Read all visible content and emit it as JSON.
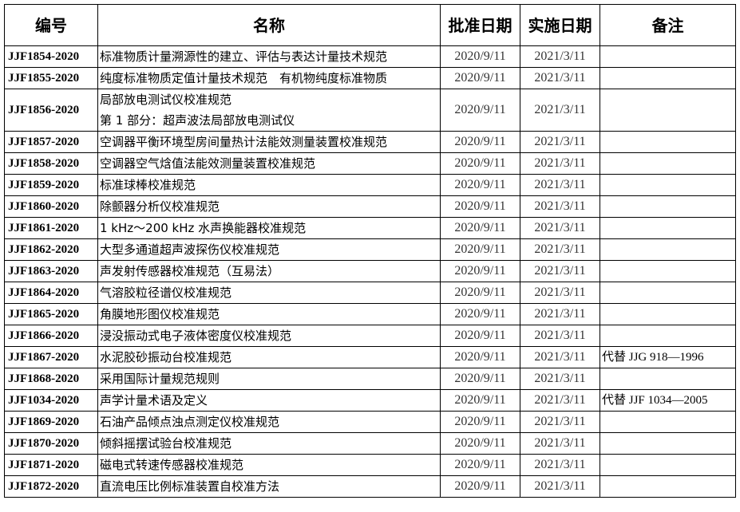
{
  "headers": [
    "编号",
    "名称",
    "批准日期",
    "实施日期",
    "备注"
  ],
  "rows": [
    {
      "code": "JJF1854-2020",
      "name": "标准物质计量溯源性的建立、评估与表达计量技术规范",
      "approved": "2020/9/11",
      "effective": "2021/3/11",
      "note": ""
    },
    {
      "code": "JJF1855-2020",
      "name": "纯度标准物质定值计量技术规范　有机物纯度标准物质",
      "approved": "2020/9/11",
      "effective": "2021/3/11",
      "note": ""
    },
    {
      "code": "JJF1856-2020",
      "name": "局部放电测试仪校准规范",
      "name2": "第 1 部分：超声波法局部放电测试仪",
      "approved": "2020/9/11",
      "effective": "2021/3/11",
      "note": ""
    },
    {
      "code": "JJF1857-2020",
      "name": "空调器平衡环境型房间量热计法能效测量装置校准规范",
      "approved": "2020/9/11",
      "effective": "2021/3/11",
      "note": ""
    },
    {
      "code": "JJF1858-2020",
      "name": "空调器空气焓值法能效测量装置校准规范",
      "approved": "2020/9/11",
      "effective": "2021/3/11",
      "note": ""
    },
    {
      "code": "JJF1859-2020",
      "name": "标准球棒校准规范",
      "approved": "2020/9/11",
      "effective": "2021/3/11",
      "note": ""
    },
    {
      "code": "JJF1860-2020",
      "name": "除颤器分析仪校准规范",
      "approved": "2020/9/11",
      "effective": "2021/3/11",
      "note": ""
    },
    {
      "code": "JJF1861-2020",
      "name": "1 kHz～200 kHz 水声换能器校准规范",
      "approved": "2020/9/11",
      "effective": "2021/3/11",
      "note": ""
    },
    {
      "code": "JJF1862-2020",
      "name": "大型多通道超声波探伤仪校准规范",
      "approved": "2020/9/11",
      "effective": "2021/3/11",
      "note": ""
    },
    {
      "code": "JJF1863-2020",
      "name": "声发射传感器校准规范（互易法）",
      "approved": "2020/9/11",
      "effective": "2021/3/11",
      "note": ""
    },
    {
      "code": "JJF1864-2020",
      "name": "气溶胶粒径谱仪校准规范",
      "approved": "2020/9/11",
      "effective": "2021/3/11",
      "note": ""
    },
    {
      "code": "JJF1865-2020",
      "name": "角膜地形图仪校准规范",
      "approved": "2020/9/11",
      "effective": "2021/3/11",
      "note": ""
    },
    {
      "code": "JJF1866-2020",
      "name": "浸没振动式电子液体密度仪校准规范",
      "approved": "2020/9/11",
      "effective": "2021/3/11",
      "note": ""
    },
    {
      "code": "JJF1867-2020",
      "name": "水泥胶砂振动台校准规范",
      "approved": "2020/9/11",
      "effective": "2021/3/11",
      "note": "代替 JJG 918—1996"
    },
    {
      "code": "JJF1868-2020",
      "name": "采用国际计量规范规则",
      "approved": "2020/9/11",
      "effective": "2021/3/11",
      "note": ""
    },
    {
      "code": "JJF1034-2020",
      "name": "声学计量术语及定义",
      "approved": "2020/9/11",
      "effective": "2021/3/11",
      "note": "代替 JJF 1034—2005"
    },
    {
      "code": "JJF1869-2020",
      "name": "石油产品倾点浊点测定仪校准规范",
      "approved": "2020/9/11",
      "effective": "2021/3/11",
      "note": ""
    },
    {
      "code": "JJF1870-2020",
      "name": "倾斜摇摆试验台校准规范",
      "approved": "2020/9/11",
      "effective": "2021/3/11",
      "note": ""
    },
    {
      "code": "JJF1871-2020",
      "name": "磁电式转速传感器校准规范",
      "approved": "2020/9/11",
      "effective": "2021/3/11",
      "note": ""
    },
    {
      "code": "JJF1872-2020",
      "name": "直流电压比例标准装置自校准方法",
      "approved": "2020/9/11",
      "effective": "2021/3/11",
      "note": ""
    }
  ]
}
